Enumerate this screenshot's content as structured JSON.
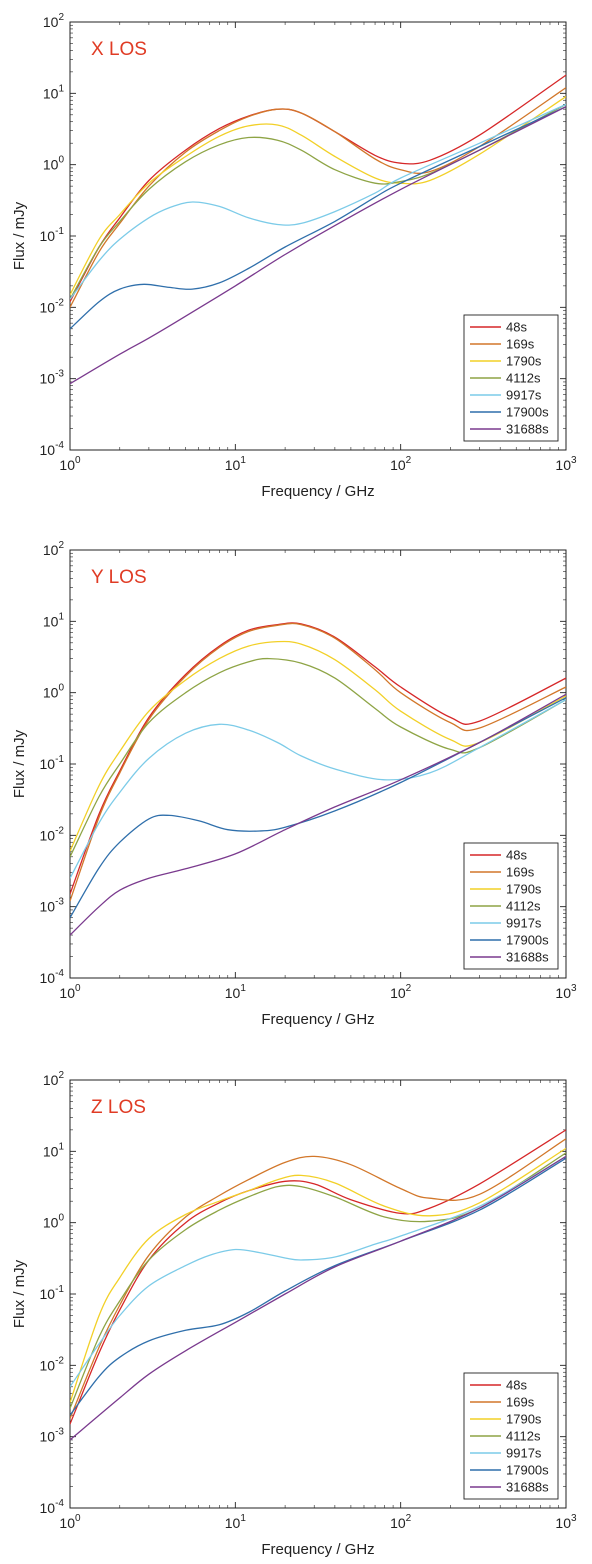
{
  "colors": {
    "48s": "#d62728",
    "169s": "#d2772a",
    "1790s": "#f2d027",
    "4112s": "#8ea445",
    "9917s": "#7ccbe8",
    "17900s": "#2f6fab",
    "31688s": "#7a3a8e",
    "panel_label": "#e03b24"
  },
  "chart_data": [
    {
      "type": "line",
      "panel_label": "X LOS",
      "xlabel": "Frequency / GHz",
      "ylabel": "Flux / mJy",
      "xscale": "log",
      "yscale": "log",
      "xlim": [
        1,
        1000
      ],
      "ylim": [
        0.0001,
        100
      ],
      "xticks": [
        {
          "v": 1,
          "m": "10",
          "e": "0"
        },
        {
          "v": 10,
          "m": "10",
          "e": "1"
        },
        {
          "v": 100,
          "m": "10",
          "e": "2"
        },
        {
          "v": 1000,
          "m": "10",
          "e": "3"
        }
      ],
      "yticks": [
        {
          "v": 0.0001,
          "m": "10",
          "e": "-4"
        },
        {
          "v": 0.001,
          "m": "10",
          "e": "-3"
        },
        {
          "v": 0.01,
          "m": "10",
          "e": "-2"
        },
        {
          "v": 0.1,
          "m": "10",
          "e": "-1"
        },
        {
          "v": 1,
          "m": "10",
          "e": "0"
        },
        {
          "v": 10,
          "m": "10",
          "e": "1"
        },
        {
          "v": 100,
          "m": "10",
          "e": "2"
        }
      ],
      "legend_position": "bottom-right",
      "series": [
        {
          "name": "48s",
          "x": [
            1,
            1.5,
            2,
            3,
            5,
            8,
            12,
            18,
            25,
            40,
            70,
            100,
            150,
            300,
            1000
          ],
          "y": [
            0.012,
            0.07,
            0.18,
            0.6,
            1.6,
            3.2,
            4.8,
            6.0,
            5.3,
            2.9,
            1.35,
            1.05,
            1.15,
            2.6,
            18
          ]
        },
        {
          "name": "169s",
          "x": [
            1,
            1.5,
            2,
            3,
            5,
            8,
            12,
            18,
            25,
            40,
            70,
            100,
            150,
            300,
            1000
          ],
          "y": [
            0.01,
            0.06,
            0.15,
            0.5,
            1.5,
            3.0,
            4.7,
            6.0,
            5.3,
            2.9,
            1.2,
            0.85,
            0.8,
            1.8,
            12
          ]
        },
        {
          "name": "1790s",
          "x": [
            1,
            1.5,
            2,
            3,
            5,
            8,
            12,
            18,
            25,
            40,
            70,
            100,
            150,
            300,
            1000
          ],
          "y": [
            0.015,
            0.09,
            0.2,
            0.55,
            1.3,
            2.5,
            3.5,
            3.6,
            2.6,
            1.3,
            0.65,
            0.55,
            0.6,
            1.4,
            9
          ]
        },
        {
          "name": "4112s",
          "x": [
            1,
            1.5,
            2,
            3,
            5,
            8,
            12,
            18,
            25,
            40,
            70,
            100,
            150,
            300,
            1000
          ],
          "y": [
            0.013,
            0.07,
            0.16,
            0.45,
            1.1,
            1.9,
            2.4,
            2.2,
            1.6,
            0.85,
            0.55,
            0.58,
            0.75,
            1.6,
            7
          ]
        },
        {
          "name": "9917s",
          "x": [
            1,
            1.5,
            2,
            3,
            4,
            5.5,
            8,
            12,
            18,
            25,
            40,
            70,
            100,
            300,
            1000
          ],
          "y": [
            0.013,
            0.045,
            0.09,
            0.18,
            0.25,
            0.3,
            0.26,
            0.18,
            0.145,
            0.15,
            0.22,
            0.4,
            0.65,
            2.0,
            7
          ]
        },
        {
          "name": "17900s",
          "x": [
            1,
            1.5,
            2,
            2.8,
            4,
            5.5,
            8,
            12,
            20,
            40,
            70,
            100,
            300,
            1000
          ],
          "y": [
            0.005,
            0.012,
            0.018,
            0.021,
            0.019,
            0.018,
            0.022,
            0.035,
            0.07,
            0.16,
            0.35,
            0.55,
            1.8,
            6.5
          ]
        },
        {
          "name": "31688s",
          "x": [
            1,
            2,
            3,
            5,
            10,
            20,
            40,
            100,
            300,
            1000
          ],
          "y": [
            0.00085,
            0.0022,
            0.0037,
            0.0075,
            0.02,
            0.055,
            0.14,
            0.45,
            1.6,
            6.5
          ]
        }
      ]
    },
    {
      "type": "line",
      "panel_label": "Y LOS",
      "xlabel": "Frequency / GHz",
      "ylabel": "Flux / mJy",
      "xscale": "log",
      "yscale": "log",
      "xlim": [
        1,
        1000
      ],
      "ylim": [
        0.0001,
        100
      ],
      "xticks": [
        {
          "v": 1,
          "m": "10",
          "e": "0"
        },
        {
          "v": 10,
          "m": "10",
          "e": "1"
        },
        {
          "v": 100,
          "m": "10",
          "e": "2"
        },
        {
          "v": 1000,
          "m": "10",
          "e": "3"
        }
      ],
      "yticks": [
        {
          "v": 0.0001,
          "m": "10",
          "e": "-4"
        },
        {
          "v": 0.001,
          "m": "10",
          "e": "-3"
        },
        {
          "v": 0.01,
          "m": "10",
          "e": "-2"
        },
        {
          "v": 0.1,
          "m": "10",
          "e": "-1"
        },
        {
          "v": 1,
          "m": "10",
          "e": "0"
        },
        {
          "v": 10,
          "m": "10",
          "e": "1"
        },
        {
          "v": 100,
          "m": "10",
          "e": "2"
        }
      ],
      "legend_position": "bottom-right",
      "series": [
        {
          "name": "48s",
          "x": [
            1,
            1.5,
            2,
            3,
            5,
            8,
            12,
            18,
            25,
            40,
            70,
            100,
            200,
            300,
            1000
          ],
          "y": [
            0.0015,
            0.02,
            0.08,
            0.45,
            1.8,
            4.5,
            7.5,
            9.0,
            9.2,
            6.0,
            2.3,
            1.2,
            0.45,
            0.4,
            1.6
          ]
        },
        {
          "name": "169s",
          "x": [
            1,
            1.5,
            2,
            3,
            5,
            8,
            12,
            18,
            25,
            40,
            70,
            100,
            200,
            300,
            1000
          ],
          "y": [
            0.0012,
            0.018,
            0.075,
            0.42,
            1.7,
            4.3,
            7.2,
            8.8,
            9.0,
            5.8,
            2.1,
            1.0,
            0.38,
            0.32,
            1.2
          ]
        },
        {
          "name": "1790s",
          "x": [
            1,
            1.5,
            2,
            3,
            5,
            8,
            12,
            18,
            25,
            40,
            70,
            100,
            200,
            300,
            1000
          ],
          "y": [
            0.006,
            0.05,
            0.15,
            0.55,
            1.5,
            3.0,
            4.5,
            5.2,
            4.8,
            2.9,
            1.1,
            0.55,
            0.22,
            0.2,
            0.9
          ]
        },
        {
          "name": "4112s",
          "x": [
            1,
            1.5,
            2,
            3,
            5,
            8,
            12,
            16,
            25,
            40,
            70,
            100,
            200,
            300,
            1000
          ],
          "y": [
            0.005,
            0.035,
            0.1,
            0.38,
            1.0,
            1.9,
            2.7,
            3.0,
            2.6,
            1.6,
            0.6,
            0.33,
            0.16,
            0.17,
            0.8
          ]
        },
        {
          "name": "9917s",
          "x": [
            1,
            1.5,
            2,
            3,
            5,
            8,
            12,
            18,
            25,
            40,
            80,
            150,
            300,
            1000
          ],
          "y": [
            0.0025,
            0.015,
            0.04,
            0.12,
            0.27,
            0.36,
            0.3,
            0.2,
            0.13,
            0.085,
            0.06,
            0.075,
            0.17,
            0.8
          ]
        },
        {
          "name": "17900s",
          "x": [
            1,
            1.5,
            2,
            3,
            4,
            6,
            9,
            14,
            20,
            40,
            100,
            300,
            1000
          ],
          "y": [
            0.0007,
            0.0035,
            0.008,
            0.017,
            0.019,
            0.016,
            0.012,
            0.0115,
            0.013,
            0.022,
            0.055,
            0.2,
            0.85
          ]
        },
        {
          "name": "31688s",
          "x": [
            1,
            1.5,
            2,
            3,
            5,
            10,
            20,
            40,
            100,
            300,
            1000
          ],
          "y": [
            0.0004,
            0.001,
            0.0017,
            0.0025,
            0.0034,
            0.0055,
            0.012,
            0.025,
            0.06,
            0.2,
            0.95
          ]
        }
      ]
    },
    {
      "type": "line",
      "panel_label": "Z LOS",
      "xlabel": "Frequency / GHz",
      "ylabel": "Flux / mJy",
      "xscale": "log",
      "yscale": "log",
      "xlim": [
        1,
        1000
      ],
      "ylim": [
        0.0001,
        100
      ],
      "xticks": [
        {
          "v": 1,
          "m": "10",
          "e": "0"
        },
        {
          "v": 10,
          "m": "10",
          "e": "1"
        },
        {
          "v": 100,
          "m": "10",
          "e": "2"
        },
        {
          "v": 1000,
          "m": "10",
          "e": "3"
        }
      ],
      "yticks": [
        {
          "v": 0.0001,
          "m": "10",
          "e": "-4"
        },
        {
          "v": 0.001,
          "m": "10",
          "e": "-3"
        },
        {
          "v": 0.01,
          "m": "10",
          "e": "-2"
        },
        {
          "v": 0.1,
          "m": "10",
          "e": "-1"
        },
        {
          "v": 1,
          "m": "10",
          "e": "0"
        },
        {
          "v": 10,
          "m": "10",
          "e": "1"
        },
        {
          "v": 100,
          "m": "10",
          "e": "2"
        }
      ],
      "legend_position": "bottom-right",
      "series": [
        {
          "name": "48s",
          "x": [
            1,
            1.5,
            2,
            3,
            5,
            8,
            12,
            20,
            30,
            50,
            100,
            150,
            300,
            1000
          ],
          "y": [
            0.0015,
            0.015,
            0.06,
            0.3,
            1.0,
            1.9,
            2.8,
            3.8,
            3.5,
            2.1,
            1.35,
            1.6,
            3.5,
            20
          ]
        },
        {
          "name": "169s",
          "x": [
            1,
            1.5,
            2,
            3,
            5,
            8,
            12,
            20,
            30,
            50,
            100,
            150,
            300,
            1000
          ],
          "y": [
            0.0018,
            0.018,
            0.07,
            0.35,
            1.2,
            2.4,
            4.0,
            7.0,
            8.5,
            6.5,
            3.0,
            2.2,
            2.5,
            15
          ]
        },
        {
          "name": "1790s",
          "x": [
            1,
            1.5,
            2,
            3,
            5,
            8,
            12,
            18,
            25,
            40,
            80,
            150,
            300,
            1000
          ],
          "y": [
            0.003,
            0.05,
            0.17,
            0.6,
            1.3,
            2.0,
            2.8,
            4.0,
            4.6,
            3.6,
            1.7,
            1.25,
            1.9,
            11
          ]
        },
        {
          "name": "4112s",
          "x": [
            1,
            1.5,
            2,
            3,
            5,
            8,
            12,
            18,
            25,
            40,
            80,
            150,
            300,
            1000
          ],
          "y": [
            0.0025,
            0.025,
            0.08,
            0.3,
            0.8,
            1.5,
            2.3,
            3.2,
            3.2,
            2.3,
            1.2,
            1.05,
            1.6,
            9.5
          ]
        },
        {
          "name": "9917s",
          "x": [
            1,
            1.5,
            2,
            3,
            5,
            7,
            10,
            14,
            20,
            25,
            40,
            70,
            100,
            300,
            1000
          ],
          "y": [
            0.005,
            0.02,
            0.05,
            0.13,
            0.25,
            0.35,
            0.42,
            0.38,
            0.32,
            0.3,
            0.33,
            0.5,
            0.65,
            1.7,
            8.5
          ]
        },
        {
          "name": "17900s",
          "x": [
            1,
            1.5,
            2,
            3,
            5,
            8,
            12,
            20,
            40,
            100,
            300,
            1000
          ],
          "y": [
            0.002,
            0.007,
            0.013,
            0.022,
            0.031,
            0.037,
            0.055,
            0.11,
            0.25,
            0.55,
            1.5,
            8
          ]
        },
        {
          "name": "31688s",
          "x": [
            1,
            2,
            3,
            5,
            10,
            20,
            40,
            100,
            300,
            1000
          ],
          "y": [
            0.0009,
            0.0035,
            0.0075,
            0.016,
            0.04,
            0.1,
            0.24,
            0.55,
            1.6,
            8.5
          ]
        }
      ]
    }
  ]
}
